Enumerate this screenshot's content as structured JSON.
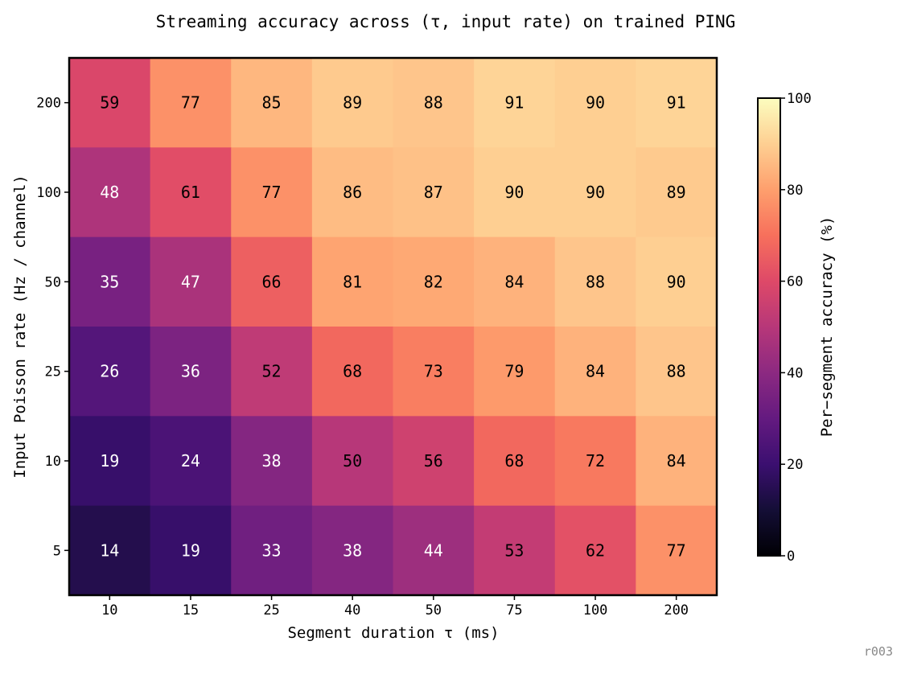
{
  "chart_data": {
    "type": "heatmap",
    "title": "Streaming accuracy across (τ, input rate) on trained PING",
    "xlabel": "Segment duration τ (ms)",
    "ylabel": "Input Poisson rate (Hz / channel)",
    "x_categories": [
      "10",
      "15",
      "25",
      "40",
      "50",
      "75",
      "100",
      "200"
    ],
    "y_categories": [
      "200",
      "100",
      "50",
      "25",
      "10",
      "5"
    ],
    "values": [
      [
        59,
        77,
        85,
        89,
        88,
        91,
        90,
        91
      ],
      [
        48,
        61,
        77,
        86,
        87,
        90,
        90,
        89
      ],
      [
        35,
        47,
        66,
        81,
        82,
        84,
        88,
        90
      ],
      [
        26,
        36,
        52,
        68,
        73,
        79,
        84,
        88
      ],
      [
        19,
        24,
        38,
        50,
        56,
        68,
        72,
        84
      ],
      [
        14,
        19,
        33,
        38,
        44,
        53,
        62,
        77
      ]
    ],
    "colorbar": {
      "label": "Per−segment accuracy (%)",
      "range": [
        0,
        100
      ],
      "ticks": [
        0,
        20,
        40,
        60,
        80,
        100
      ],
      "colormap": "magma"
    },
    "grid": false
  },
  "footer": {
    "tag": "r003"
  }
}
